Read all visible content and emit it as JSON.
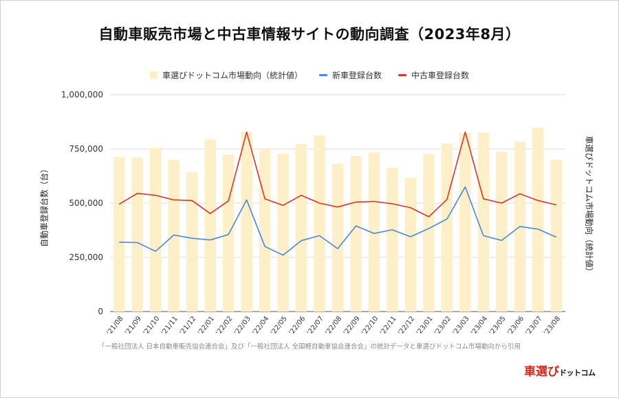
{
  "title": "自動車販売市場と中古車情報サイトの動向調査（2023年8月）",
  "source_note": "「一般社団法人 日本自動車販売協会連合会」及び「一般社団法人 全国軽自動車協会連合会」の統計データと車選びドットコム市場動向から引用",
  "logo": {
    "part1": "車選び",
    "part2": "ドットコム"
  },
  "colors": {
    "bar": "#fdefc8",
    "new": "#4a86e0",
    "used": "#d9352a",
    "grid": "#dddddd"
  },
  "chart_data": {
    "type": "bar",
    "title": "自動車販売市場と中古車情報サイトの動向調査（2023年8月）",
    "xlabel": "",
    "ylabel": "自動車登録台数（台）",
    "ylabel_right": "車選びドットコム市場動向（統計値）",
    "ylim": [
      0,
      1000000
    ],
    "yticks": [
      0,
      250000,
      500000,
      750000,
      1000000
    ],
    "ytick_labels": [
      "0",
      "250,000",
      "500,000",
      "750,000",
      "1,000,000"
    ],
    "grid": true,
    "legend_position": "top",
    "categories": [
      "'21/08",
      "'21/09",
      "'21/10",
      "'21/11",
      "'21/12",
      "'22/01",
      "'22/02",
      "'22/03",
      "'22/04",
      "'22/05",
      "'22/06",
      "'22/07",
      "'22/08",
      "'22/09",
      "'22/10",
      "'22/11",
      "'22/12",
      "'23/01",
      "'23/02",
      "'23/03",
      "'23/04",
      "'23/05",
      "'23/06",
      "'23/07",
      "'23/08"
    ],
    "series": [
      {
        "name": "車選びドットコム市場動向（統計値）",
        "type": "bar",
        "axis": "right",
        "values": [
          713000,
          710000,
          755000,
          700000,
          643000,
          793000,
          725000,
          830000,
          750000,
          728000,
          772000,
          812000,
          682000,
          718000,
          733000,
          663000,
          617000,
          727000,
          775000,
          823000,
          826000,
          737000,
          783000,
          848000,
          700000
        ]
      },
      {
        "name": "新車登録台数",
        "type": "line",
        "axis": "left",
        "values": [
          320000,
          318000,
          278000,
          353000,
          338000,
          330000,
          355000,
          515000,
          300000,
          260000,
          327000,
          350000,
          290000,
          395000,
          360000,
          377000,
          345000,
          383000,
          427000,
          575000,
          350000,
          328000,
          392000,
          380000,
          343000
        ]
      },
      {
        "name": "中古車登録台数",
        "type": "line",
        "axis": "left",
        "values": [
          495000,
          545000,
          536000,
          515000,
          512000,
          452000,
          510000,
          828000,
          520000,
          490000,
          536000,
          500000,
          482000,
          505000,
          508000,
          497000,
          479000,
          437000,
          517000,
          828000,
          520000,
          500000,
          543000,
          512000,
          492000
        ]
      }
    ]
  }
}
